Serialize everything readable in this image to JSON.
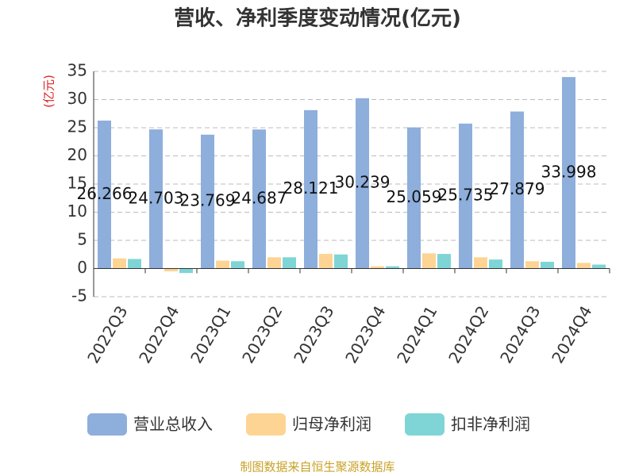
{
  "chart_data": {
    "type": "bar",
    "title": "营收、净利季度变动情况(亿元)",
    "y_label": "(亿元)",
    "categories": [
      "2022Q3",
      "2022Q4",
      "2023Q1",
      "2023Q2",
      "2023Q3",
      "2023Q4",
      "2024Q1",
      "2024Q2",
      "2024Q3",
      "2024Q4"
    ],
    "series": [
      {
        "name": "营业总收入",
        "color": "#8eaedc",
        "values": [
          26.266,
          24.703,
          23.769,
          24.687,
          28.121,
          30.239,
          25.059,
          25.735,
          27.879,
          33.998
        ]
      },
      {
        "name": "归母净利润",
        "color": "#fdd494",
        "values": [
          1.8,
          -0.5,
          1.4,
          2.0,
          2.6,
          0.4,
          2.7,
          2.0,
          1.3,
          1.0
        ]
      },
      {
        "name": "扣非净利润",
        "color": "#7fd5d5",
        "values": [
          1.7,
          -0.8,
          1.3,
          2.0,
          2.5,
          0.4,
          2.6,
          1.6,
          1.2,
          0.7
        ]
      }
    ],
    "ylim": [
      -5,
      35
    ],
    "yticks": [
      -5,
      0,
      5,
      10,
      15,
      20,
      25,
      30,
      35
    ],
    "grid": true,
    "legend": "bottom",
    "source": "制图数据来自恒生聚源数据库"
  }
}
